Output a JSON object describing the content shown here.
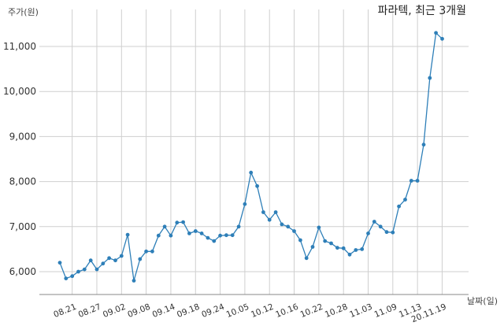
{
  "chart_data": {
    "type": "line",
    "title": "파라텍, 최근 3개월",
    "ylabel": "주가(원)",
    "xlabel": "날짜(일)",
    "ylim": [
      5500,
      11600
    ],
    "y_ticks": [
      6000,
      7000,
      8000,
      9000,
      10000,
      11000
    ],
    "y_tick_labels": [
      "6,000",
      "7,000",
      "8,000",
      "9,000",
      "10,000",
      "11,000"
    ],
    "x_tick_labels": [
      "08.21",
      "08.27",
      "09.02",
      "09.08",
      "09.14",
      "09.18",
      "09.24",
      "10.05",
      "10.12",
      "10.16",
      "10.22",
      "10.28",
      "11.03",
      "11.09",
      "11.13",
      "20.11.19"
    ],
    "x_tick_index": [
      2,
      6,
      10,
      14,
      18,
      22,
      26,
      30,
      34,
      38,
      42,
      46,
      50,
      54,
      58,
      62
    ],
    "line_color": "#2e7fb8",
    "grid": true,
    "series": [
      {
        "values": [
          6200,
          5850,
          5900,
          6000,
          6050,
          6250,
          6050,
          6180,
          6300,
          6250,
          6350,
          6820,
          5800,
          6280,
          6450,
          6450,
          6800,
          7000,
          6800,
          7090,
          7100,
          6850,
          6900,
          6850,
          6750,
          6680,
          6800,
          6810,
          6810,
          7000,
          7500,
          8200,
          7900,
          7320,
          7150,
          7320,
          7050,
          7000,
          6900,
          6700,
          6300,
          6550,
          6980,
          6680,
          6630,
          6530,
          6520,
          6380,
          6480,
          6500,
          6850,
          7110,
          7000,
          6880,
          6870,
          7450,
          7600,
          8020,
          8020,
          8820,
          10300,
          11300,
          11170
        ]
      }
    ]
  }
}
